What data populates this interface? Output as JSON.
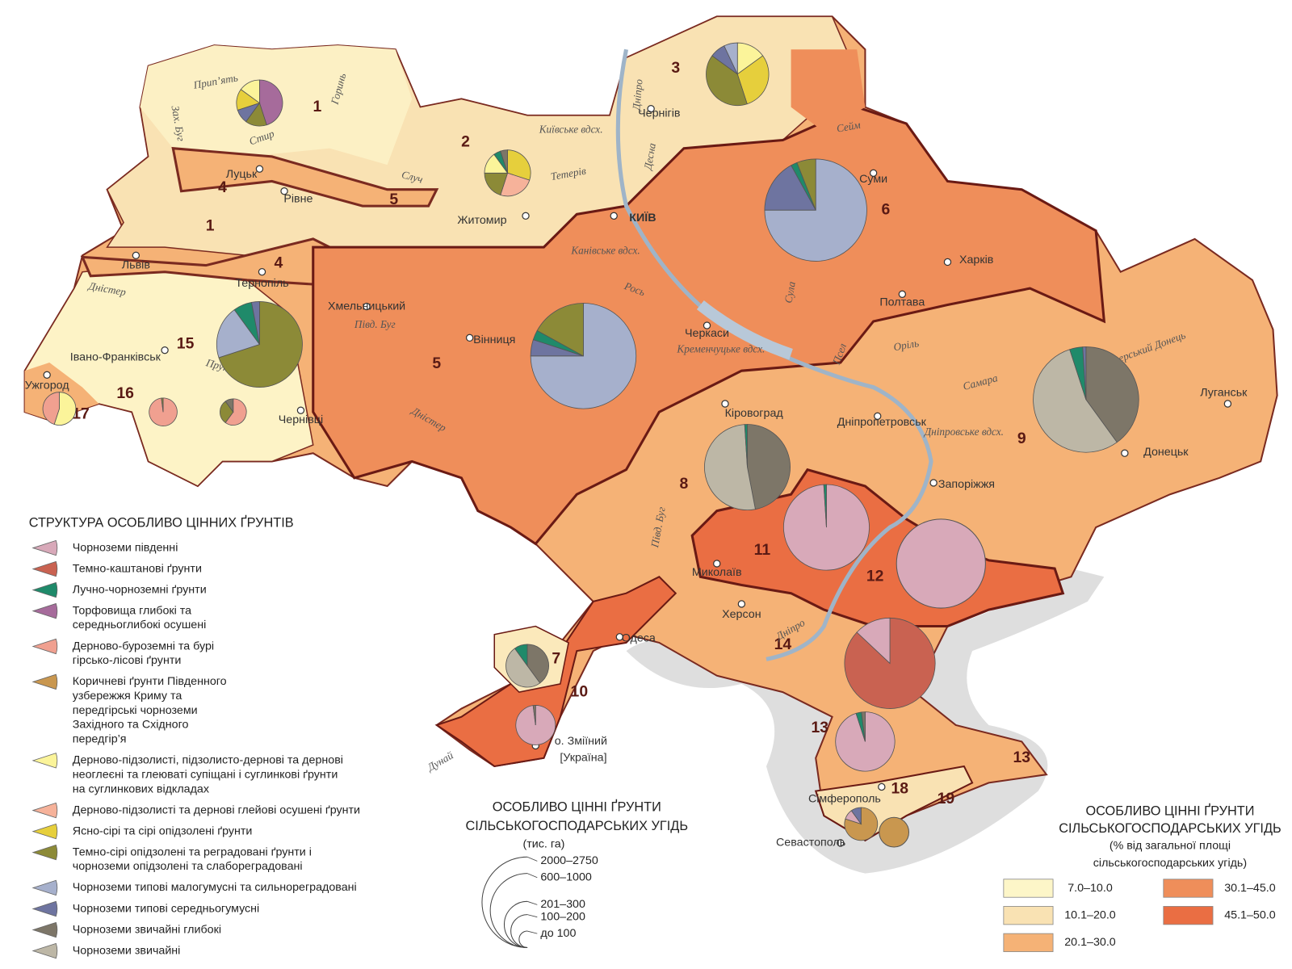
{
  "map": {
    "regions": [
      "1",
      "1",
      "2",
      "3",
      "4",
      "4",
      "5",
      "5",
      "6",
      "7",
      "8",
      "9",
      "10",
      "11",
      "12",
      "13",
      "13",
      "14",
      "15",
      "16",
      "17",
      "18",
      "19"
    ],
    "cities": [
      "Луцьк",
      "Рівне",
      "Житомир",
      "КИЇВ",
      "Чернігів",
      "Суми",
      "Харків",
      "Полтава",
      "Львів",
      "Тернопіль",
      "Хмельницький",
      "Вінниця",
      "Черкаси",
      "Івано-Франківськ",
      "Ужгород",
      "Чернівці",
      "Кіровоград",
      "Дніпропетровськ",
      "Луганськ",
      "Донецьк",
      "Запоріжжя",
      "Миколаїв",
      "Херсон",
      "Одеса",
      "Сімферополь",
      "Севастополь",
      "о. Зміїний",
      "[Україна]"
    ],
    "rivers": [
      "Прип’ять",
      "Горинь",
      "Стир",
      "Зах. Буг",
      "Случ",
      "Київське вдсх.",
      "Тетерів",
      "Дніпро",
      "Десна",
      "Сейм",
      "Канівське вдсх.",
      "Рось",
      "Сула",
      "Псел",
      "Півд. Буг",
      "Дністер",
      "Дністер",
      "Прут",
      "Кременчуцьке вдсх.",
      "Оріль",
      "Самара",
      "Сіверський Донець",
      "Дніпровське вдсх.",
      "Півд. Буг",
      "Дніпро",
      "Дунай"
    ]
  },
  "pies": [
    {
      "slices": [
        {
          "color": "#a66b9b",
          "value": 45
        },
        {
          "color": "#8c8a37",
          "value": 15
        },
        {
          "color": "#6e74a0",
          "value": 10
        },
        {
          "color": "#e6cf3c",
          "value": 15
        },
        {
          "color": "#fbf49a",
          "value": 15
        }
      ]
    },
    {
      "slices": [
        {
          "color": "#e6cf3c",
          "value": 30
        },
        {
          "color": "#f6b29a",
          "value": 25
        },
        {
          "color": "#8c8a37",
          "value": 20
        },
        {
          "color": "#fbf49a",
          "value": 15
        },
        {
          "color": "#1f8a6a",
          "value": 5
        },
        {
          "color": "#7d7668",
          "value": 5
        }
      ]
    },
    {
      "slices": [
        {
          "color": "#fbf49a",
          "value": 15
        },
        {
          "color": "#e6cf3c",
          "value": 30
        },
        {
          "color": "#8c8a37",
          "value": 40
        },
        {
          "color": "#6e74a0",
          "value": 8
        },
        {
          "color": "#a6b0cc",
          "value": 7
        }
      ]
    },
    {
      "slices": [
        {
          "color": "#a6b0cc",
          "value": 75
        },
        {
          "color": "#6e74a0",
          "value": 17
        },
        {
          "color": "#1f8a6a",
          "value": 2
        },
        {
          "color": "#8c8a37",
          "value": 6
        }
      ]
    },
    {
      "slices": [
        {
          "color": "#8c8a37",
          "value": 70
        },
        {
          "color": "#a6b0cc",
          "value": 20
        },
        {
          "color": "#1f8a6a",
          "value": 7
        },
        {
          "color": "#6e74a0",
          "value": 3
        }
      ]
    },
    {
      "slices": [
        {
          "color": "#a6b0cc",
          "value": 75
        },
        {
          "color": "#6e74a0",
          "value": 5
        },
        {
          "color": "#1f8a6a",
          "value": 3
        },
        {
          "color": "#8c8a37",
          "value": 17
        }
      ]
    },
    {
      "slices": [
        {
          "color": "#fbf49a",
          "value": 55
        },
        {
          "color": "#f0a090",
          "value": 45
        }
      ]
    },
    {
      "slices": [
        {
          "color": "#f0a090",
          "value": 98
        },
        {
          "color": "#8c8a37",
          "value": 2
        }
      ]
    },
    {
      "slices": [
        {
          "color": "#f0a090",
          "value": 60
        },
        {
          "color": "#8c8a37",
          "value": 30
        },
        {
          "color": "#7d7668",
          "value": 10
        }
      ]
    },
    {
      "slices": [
        {
          "color": "#7d7668",
          "value": 47
        },
        {
          "color": "#bdb7a6",
          "value": 52
        },
        {
          "color": "#1f8a6a",
          "value": 1
        }
      ]
    },
    {
      "slices": [
        {
          "color": "#7d7668",
          "value": 40
        },
        {
          "color": "#bdb7a6",
          "value": 55
        },
        {
          "color": "#1f8a6a",
          "value": 4
        },
        {
          "color": "#6e74a0",
          "value": 1
        }
      ]
    },
    {
      "slices": [
        {
          "color": "#d8a9b9",
          "value": 99
        },
        {
          "color": "#1f8a6a",
          "value": 1
        }
      ]
    },
    {
      "slices": [
        {
          "color": "#d8a9b9",
          "value": 100
        }
      ]
    },
    {
      "slices": [
        {
          "color": "#c96251",
          "value": 87
        },
        {
          "color": "#d8a9b9",
          "value": 13
        }
      ]
    },
    {
      "slices": [
        {
          "color": "#7d7668",
          "value": 40
        },
        {
          "color": "#bdb7a6",
          "value": 50
        },
        {
          "color": "#1f8a6a",
          "value": 10
        }
      ]
    },
    {
      "slices": [
        {
          "color": "#d8a9b9",
          "value": 98
        },
        {
          "color": "#7d7668",
          "value": 2
        }
      ]
    },
    {
      "slices": [
        {
          "color": "#d8a9b9",
          "value": 95
        },
        {
          "color": "#1f8a6a",
          "value": 3
        },
        {
          "color": "#7d7668",
          "value": 2
        }
      ]
    },
    {
      "slices": [
        {
          "color": "#c9974f",
          "value": 80
        },
        {
          "color": "#d8a9b9",
          "value": 10
        },
        {
          "color": "#6e74a0",
          "value": 10
        }
      ]
    },
    {
      "slices": [
        {
          "color": "#c9974f",
          "value": 100
        }
      ]
    }
  ],
  "soil_legend": {
    "title": "СТРУКТУРА ОСОБЛИВО ЦІННИХ ҐРУНТІВ",
    "items": [
      {
        "lines": [
          "Чорноземи південні"
        ],
        "color": "#d8a9b9"
      },
      {
        "lines": [
          "Темно-каштанові ґрунти"
        ],
        "color": "#c96251"
      },
      {
        "lines": [
          "Лучно-чорноземні ґрунти"
        ],
        "color": "#1f8a6a"
      },
      {
        "lines": [
          "Торфовища глибокі та",
          "середньоглибокі осушені"
        ],
        "color": "#a66b9b"
      },
      {
        "lines": [
          "Дерново-буроземні та бурі",
          "гірсько-лісові ґрунти"
        ],
        "color": "#f0a090"
      },
      {
        "lines": [
          "Коричневі ґрунти Південного",
          "узбережжя Криму та",
          "передгірські чорноземи",
          "Західного та Східного",
          "передгір’я"
        ],
        "color": "#c9974f"
      },
      {
        "lines": [
          "Дерново-підзолисті, підзолисто-дернові та дернові",
          "неоглеєні та глеюваті супіщані і суглинкові ґрунти",
          "на суглинкових відкладах"
        ],
        "color": "#fbf49a"
      },
      {
        "lines": [
          "Дерново-підзолисті та дернові глейові осушені ґрунти"
        ],
        "color": "#f6b29a"
      },
      {
        "lines": [
          "Ясно-сірі та сірі опідзолені ґрунти"
        ],
        "color": "#e6cf3c"
      },
      {
        "lines": [
          "Темно-сірі опідзолені та реградовані ґрунти і",
          "чорноземи опідзолені та слабореградовані"
        ],
        "color": "#8c8a37"
      },
      {
        "lines": [
          "Чорноземи типові малогумусні та сильнореградовані"
        ],
        "color": "#a6b0cc"
      },
      {
        "lines": [
          "Чорноземи типові середньогумусні"
        ],
        "color": "#6e74a0"
      },
      {
        "lines": [
          "Чорноземи звичайні глибокі"
        ],
        "color": "#7d7668"
      },
      {
        "lines": [
          "Чорноземи звичайні"
        ],
        "color": "#bdb7a6"
      }
    ]
  },
  "size_legend": {
    "title": [
      "ОСОБЛИВО ЦІННІ ҐРУНТИ",
      "СІЛЬСЬКОГОСПОДАРСЬКИХ УГІДЬ"
    ],
    "unit": "(тис. га)",
    "classes": [
      "2000–2750",
      "600–1000",
      "201–300",
      "100–200",
      "до 100"
    ]
  },
  "share_legend": {
    "title": [
      "ОСОБЛИВО ЦІННІ ҐРУНТИ",
      "СІЛЬСЬКОГОСПОДАРСЬКИХ УГІДЬ",
      "(% від загальної площі",
      "сільськогосподарських угідь)"
    ],
    "classes": [
      {
        "label": "7.0–10.0",
        "color": "#fdf6c8"
      },
      {
        "label": "10.1–20.0",
        "color": "#f9e2b3"
      },
      {
        "label": "20.1–30.0",
        "color": "#f5b276"
      },
      {
        "label": "30.1–45.0",
        "color": "#ef8e5a"
      },
      {
        "label": "45.1–50.0",
        "color": "#ea6e43"
      }
    ]
  }
}
